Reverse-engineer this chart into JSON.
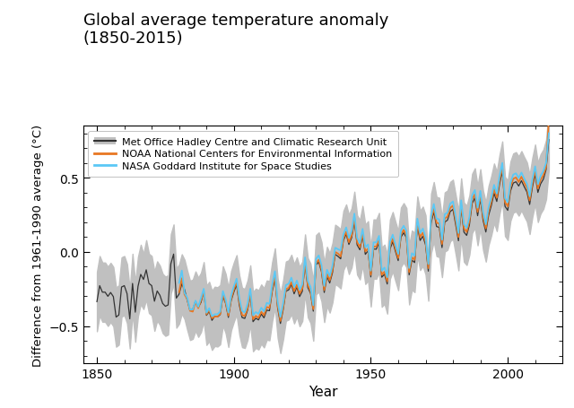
{
  "title": "Global average temperature anomaly\n(1850-2015)",
  "xlabel": "Year",
  "ylabel": "Difference from 1961-1990 average (°C)",
  "xlim": [
    1845,
    2020
  ],
  "ylim": [
    -0.75,
    0.85
  ],
  "hadcrut_color": "#333333",
  "hadcrut_uncertainty_color": "#c0c0c0",
  "noaa_color": "#e87722",
  "nasa_color": "#5bc8f5",
  "background": "#ffffff",
  "hadcrut_years": [
    1850,
    1851,
    1852,
    1853,
    1854,
    1855,
    1856,
    1857,
    1858,
    1859,
    1860,
    1861,
    1862,
    1863,
    1864,
    1865,
    1866,
    1867,
    1868,
    1869,
    1870,
    1871,
    1872,
    1873,
    1874,
    1875,
    1876,
    1877,
    1878,
    1879,
    1880,
    1881,
    1882,
    1883,
    1884,
    1885,
    1886,
    1887,
    1888,
    1889,
    1890,
    1891,
    1892,
    1893,
    1894,
    1895,
    1896,
    1897,
    1898,
    1899,
    1900,
    1901,
    1902,
    1903,
    1904,
    1905,
    1906,
    1907,
    1908,
    1909,
    1910,
    1911,
    1912,
    1913,
    1914,
    1915,
    1916,
    1917,
    1918,
    1919,
    1920,
    1921,
    1922,
    1923,
    1924,
    1925,
    1926,
    1927,
    1928,
    1929,
    1930,
    1931,
    1932,
    1933,
    1934,
    1935,
    1936,
    1937,
    1938,
    1939,
    1940,
    1941,
    1942,
    1943,
    1944,
    1945,
    1946,
    1947,
    1948,
    1949,
    1950,
    1951,
    1952,
    1953,
    1954,
    1955,
    1956,
    1957,
    1958,
    1959,
    1960,
    1961,
    1962,
    1963,
    1964,
    1965,
    1966,
    1967,
    1968,
    1969,
    1970,
    1971,
    1972,
    1973,
    1974,
    1975,
    1976,
    1977,
    1978,
    1979,
    1980,
    1981,
    1982,
    1983,
    1984,
    1985,
    1986,
    1987,
    1988,
    1989,
    1990,
    1991,
    1992,
    1993,
    1994,
    1995,
    1996,
    1997,
    1998,
    1999,
    2000,
    2001,
    2002,
    2003,
    2004,
    2005,
    2006,
    2007,
    2008,
    2009,
    2010,
    2011,
    2012,
    2013,
    2014,
    2015
  ],
  "hadcrut_vals": [
    -0.336,
    -0.228,
    -0.272,
    -0.272,
    -0.3,
    -0.274,
    -0.302,
    -0.44,
    -0.426,
    -0.237,
    -0.228,
    -0.282,
    -0.452,
    -0.213,
    -0.407,
    -0.233,
    -0.152,
    -0.186,
    -0.121,
    -0.213,
    -0.228,
    -0.333,
    -0.264,
    -0.293,
    -0.348,
    -0.367,
    -0.358,
    -0.08,
    -0.015,
    -0.312,
    -0.285,
    -0.216,
    -0.254,
    -0.328,
    -0.395,
    -0.387,
    -0.332,
    -0.374,
    -0.341,
    -0.269,
    -0.428,
    -0.402,
    -0.462,
    -0.435,
    -0.439,
    -0.424,
    -0.297,
    -0.348,
    -0.442,
    -0.329,
    -0.271,
    -0.222,
    -0.359,
    -0.443,
    -0.449,
    -0.393,
    -0.291,
    -0.471,
    -0.448,
    -0.459,
    -0.42,
    -0.445,
    -0.393,
    -0.397,
    -0.267,
    -0.176,
    -0.381,
    -0.483,
    -0.39,
    -0.265,
    -0.257,
    -0.22,
    -0.283,
    -0.237,
    -0.302,
    -0.266,
    -0.082,
    -0.241,
    -0.28,
    -0.4,
    -0.087,
    -0.069,
    -0.134,
    -0.274,
    -0.166,
    -0.21,
    -0.141,
    -0.017,
    -0.03,
    -0.047,
    0.077,
    0.12,
    0.05,
    0.095,
    0.206,
    0.047,
    0.014,
    0.11,
    -0.017,
    0.007,
    -0.169,
    0.019,
    0.018,
    0.063,
    -0.171,
    -0.151,
    -0.217,
    0.018,
    0.069,
    0.003,
    -0.059,
    0.099,
    0.129,
    0.096,
    -0.155,
    -0.056,
    -0.072,
    0.174,
    0.077,
    0.105,
    0.047,
    -0.13,
    0.192,
    0.271,
    0.171,
    0.165,
    0.029,
    0.201,
    0.214,
    0.272,
    0.287,
    0.183,
    0.075,
    0.296,
    0.133,
    0.111,
    0.181,
    0.327,
    0.364,
    0.244,
    0.358,
    0.212,
    0.134,
    0.245,
    0.312,
    0.396,
    0.34,
    0.455,
    0.545,
    0.307,
    0.28,
    0.41,
    0.464,
    0.473,
    0.444,
    0.48,
    0.44,
    0.404,
    0.32,
    0.436,
    0.524,
    0.401,
    0.459,
    0.49,
    0.555,
    0.757
  ],
  "hadcrut_lower": [
    -0.536,
    -0.428,
    -0.472,
    -0.472,
    -0.5,
    -0.474,
    -0.502,
    -0.64,
    -0.626,
    -0.437,
    -0.428,
    -0.482,
    -0.652,
    -0.413,
    -0.607,
    -0.433,
    -0.352,
    -0.386,
    -0.321,
    -0.413,
    -0.428,
    -0.533,
    -0.464,
    -0.493,
    -0.548,
    -0.567,
    -0.558,
    -0.28,
    -0.215,
    -0.512,
    -0.485,
    -0.416,
    -0.454,
    -0.528,
    -0.595,
    -0.587,
    -0.532,
    -0.574,
    -0.541,
    -0.469,
    -0.628,
    -0.602,
    -0.662,
    -0.635,
    -0.639,
    -0.624,
    -0.497,
    -0.548,
    -0.642,
    -0.529,
    -0.471,
    -0.422,
    -0.559,
    -0.643,
    -0.649,
    -0.593,
    -0.491,
    -0.671,
    -0.648,
    -0.659,
    -0.62,
    -0.645,
    -0.593,
    -0.597,
    -0.467,
    -0.376,
    -0.581,
    -0.683,
    -0.59,
    -0.465,
    -0.457,
    -0.42,
    -0.483,
    -0.437,
    -0.502,
    -0.466,
    -0.282,
    -0.441,
    -0.48,
    -0.6,
    -0.287,
    -0.269,
    -0.334,
    -0.474,
    -0.366,
    -0.41,
    -0.341,
    -0.217,
    -0.23,
    -0.247,
    -0.123,
    -0.08,
    -0.15,
    -0.105,
    0.006,
    -0.153,
    -0.186,
    -0.09,
    -0.217,
    -0.193,
    -0.369,
    -0.181,
    -0.182,
    -0.137,
    -0.371,
    -0.351,
    -0.417,
    -0.182,
    -0.131,
    -0.197,
    -0.259,
    -0.101,
    -0.071,
    -0.104,
    -0.355,
    -0.256,
    -0.272,
    -0.026,
    -0.123,
    -0.095,
    -0.153,
    -0.33,
    -0.008,
    0.071,
    -0.029,
    -0.035,
    -0.171,
    0.001,
    0.014,
    0.072,
    0.087,
    -0.017,
    -0.125,
    0.096,
    -0.067,
    -0.089,
    -0.019,
    0.127,
    0.164,
    0.044,
    0.158,
    0.012,
    -0.066,
    0.045,
    0.112,
    0.196,
    0.14,
    0.255,
    0.345,
    0.107,
    0.08,
    0.21,
    0.264,
    0.273,
    0.244,
    0.28,
    0.24,
    0.204,
    0.12,
    0.236,
    0.324,
    0.201,
    0.259,
    0.29,
    0.355,
    0.557
  ],
  "hadcrut_upper": [
    -0.136,
    -0.028,
    -0.072,
    -0.072,
    -0.1,
    -0.074,
    -0.102,
    -0.24,
    -0.226,
    -0.037,
    -0.028,
    -0.082,
    -0.252,
    -0.013,
    -0.207,
    -0.033,
    0.048,
    -0.014,
    0.079,
    -0.013,
    -0.028,
    -0.133,
    -0.064,
    -0.093,
    -0.148,
    -0.167,
    -0.158,
    0.12,
    0.185,
    -0.112,
    -0.085,
    -0.016,
    -0.054,
    -0.128,
    -0.195,
    -0.187,
    -0.132,
    -0.174,
    -0.141,
    -0.069,
    -0.228,
    -0.202,
    -0.262,
    -0.235,
    -0.239,
    -0.224,
    -0.097,
    -0.148,
    -0.242,
    -0.129,
    -0.071,
    -0.022,
    -0.159,
    -0.243,
    -0.249,
    -0.193,
    -0.091,
    -0.271,
    -0.248,
    -0.259,
    -0.22,
    -0.245,
    -0.193,
    -0.197,
    -0.067,
    0.024,
    -0.181,
    -0.283,
    -0.19,
    -0.065,
    -0.057,
    -0.02,
    -0.083,
    -0.037,
    -0.102,
    -0.066,
    0.118,
    -0.041,
    -0.08,
    -0.2,
    0.113,
    0.131,
    0.066,
    -0.074,
    0.034,
    -0.01,
    0.059,
    0.183,
    0.17,
    0.153,
    0.277,
    0.32,
    0.25,
    0.295,
    0.406,
    0.247,
    0.214,
    0.31,
    0.183,
    0.207,
    0.031,
    0.219,
    0.218,
    0.263,
    0.029,
    0.049,
    -0.017,
    0.218,
    0.269,
    0.203,
    0.141,
    0.299,
    0.329,
    0.296,
    0.045,
    0.144,
    0.128,
    0.374,
    0.277,
    0.305,
    0.247,
    -0.07,
    0.392,
    0.471,
    0.371,
    0.365,
    0.229,
    0.401,
    0.414,
    0.472,
    0.487,
    0.383,
    0.275,
    0.496,
    0.333,
    0.311,
    0.381,
    0.527,
    0.564,
    0.444,
    0.558,
    0.412,
    0.334,
    0.445,
    0.512,
    0.596,
    0.54,
    0.655,
    0.745,
    0.507,
    0.48,
    0.61,
    0.664,
    0.673,
    0.644,
    0.68,
    0.64,
    0.604,
    0.52,
    0.636,
    0.724,
    0.601,
    0.659,
    0.69,
    0.755,
    0.957
  ],
  "noaa_years": [
    1880,
    1881,
    1882,
    1883,
    1884,
    1885,
    1886,
    1887,
    1888,
    1889,
    1890,
    1891,
    1892,
    1893,
    1894,
    1895,
    1896,
    1897,
    1898,
    1899,
    1900,
    1901,
    1902,
    1903,
    1904,
    1905,
    1906,
    1907,
    1908,
    1909,
    1910,
    1911,
    1912,
    1913,
    1914,
    1915,
    1916,
    1917,
    1918,
    1919,
    1920,
    1921,
    1922,
    1923,
    1924,
    1925,
    1926,
    1927,
    1928,
    1929,
    1930,
    1931,
    1932,
    1933,
    1934,
    1935,
    1936,
    1937,
    1938,
    1939,
    1940,
    1941,
    1942,
    1943,
    1944,
    1945,
    1946,
    1947,
    1948,
    1949,
    1950,
    1951,
    1952,
    1953,
    1954,
    1955,
    1956,
    1957,
    1958,
    1959,
    1960,
    1961,
    1962,
    1963,
    1964,
    1965,
    1966,
    1967,
    1968,
    1969,
    1970,
    1971,
    1972,
    1973,
    1974,
    1975,
    1976,
    1977,
    1978,
    1979,
    1980,
    1981,
    1982,
    1983,
    1984,
    1985,
    1986,
    1987,
    1988,
    1989,
    1990,
    1991,
    1992,
    1993,
    1994,
    1995,
    1996,
    1997,
    1998,
    1999,
    2000,
    2001,
    2002,
    2003,
    2004,
    2005,
    2006,
    2007,
    2008,
    2009,
    2010,
    2011,
    2012,
    2013,
    2014,
    2015
  ],
  "noaa_vals": [
    -0.272,
    -0.178,
    -0.288,
    -0.319,
    -0.398,
    -0.403,
    -0.337,
    -0.38,
    -0.328,
    -0.266,
    -0.421,
    -0.392,
    -0.448,
    -0.437,
    -0.437,
    -0.42,
    -0.284,
    -0.34,
    -0.43,
    -0.318,
    -0.254,
    -0.204,
    -0.338,
    -0.426,
    -0.433,
    -0.38,
    -0.278,
    -0.455,
    -0.432,
    -0.445,
    -0.404,
    -0.428,
    -0.372,
    -0.378,
    -0.248,
    -0.159,
    -0.365,
    -0.466,
    -0.375,
    -0.252,
    -0.243,
    -0.204,
    -0.265,
    -0.222,
    -0.283,
    -0.247,
    -0.068,
    -0.224,
    -0.265,
    -0.387,
    -0.075,
    -0.053,
    -0.119,
    -0.258,
    -0.149,
    -0.193,
    -0.122,
    -0.001,
    -0.011,
    -0.031,
    0.091,
    0.136,
    0.065,
    0.112,
    0.229,
    0.066,
    0.031,
    0.127,
    0.003,
    0.022,
    -0.155,
    0.036,
    0.036,
    0.08,
    -0.155,
    -0.134,
    -0.199,
    0.04,
    0.088,
    0.021,
    -0.042,
    0.117,
    0.148,
    0.113,
    -0.137,
    -0.037,
    -0.053,
    0.196,
    0.099,
    0.129,
    0.068,
    -0.11,
    0.215,
    0.295,
    0.196,
    0.191,
    0.053,
    0.225,
    0.237,
    0.297,
    0.312,
    0.211,
    0.099,
    0.32,
    0.159,
    0.134,
    0.206,
    0.355,
    0.389,
    0.27,
    0.383,
    0.238,
    0.158,
    0.272,
    0.339,
    0.424,
    0.365,
    0.483,
    0.572,
    0.335,
    0.307,
    0.438,
    0.493,
    0.502,
    0.471,
    0.507,
    0.467,
    0.432,
    0.347,
    0.463,
    0.549,
    0.428,
    0.486,
    0.517,
    0.572,
    0.9
  ],
  "nasa_years": [
    1880,
    1881,
    1882,
    1883,
    1884,
    1885,
    1886,
    1887,
    1888,
    1889,
    1890,
    1891,
    1892,
    1893,
    1894,
    1895,
    1896,
    1897,
    1898,
    1899,
    1900,
    1901,
    1902,
    1903,
    1904,
    1905,
    1906,
    1907,
    1908,
    1909,
    1910,
    1911,
    1912,
    1913,
    1914,
    1915,
    1916,
    1917,
    1918,
    1919,
    1920,
    1921,
    1922,
    1923,
    1924,
    1925,
    1926,
    1927,
    1928,
    1929,
    1930,
    1931,
    1932,
    1933,
    1934,
    1935,
    1936,
    1937,
    1938,
    1939,
    1940,
    1941,
    1942,
    1943,
    1944,
    1945,
    1946,
    1947,
    1948,
    1949,
    1950,
    1951,
    1952,
    1953,
    1954,
    1955,
    1956,
    1957,
    1958,
    1959,
    1960,
    1961,
    1962,
    1963,
    1964,
    1965,
    1966,
    1967,
    1968,
    1969,
    1970,
    1971,
    1972,
    1973,
    1974,
    1975,
    1976,
    1977,
    1978,
    1979,
    1980,
    1981,
    1982,
    1983,
    1984,
    1985,
    1986,
    1987,
    1988,
    1989,
    1990,
    1991,
    1992,
    1993,
    1994,
    1995,
    1996,
    1997,
    1998,
    1999,
    2000,
    2001,
    2002,
    2003,
    2004,
    2005,
    2006,
    2007,
    2008,
    2009,
    2010,
    2011,
    2012,
    2013,
    2014,
    2015
  ],
  "nasa_vals": [
    -0.209,
    -0.126,
    -0.277,
    -0.31,
    -0.39,
    -0.388,
    -0.329,
    -0.37,
    -0.311,
    -0.249,
    -0.411,
    -0.38,
    -0.434,
    -0.421,
    -0.421,
    -0.403,
    -0.265,
    -0.321,
    -0.41,
    -0.295,
    -0.232,
    -0.181,
    -0.313,
    -0.399,
    -0.408,
    -0.352,
    -0.249,
    -0.428,
    -0.406,
    -0.418,
    -0.377,
    -0.401,
    -0.344,
    -0.351,
    -0.22,
    -0.131,
    -0.337,
    -0.439,
    -0.347,
    -0.224,
    -0.215,
    -0.174,
    -0.237,
    -0.194,
    -0.255,
    -0.218,
    -0.037,
    -0.195,
    -0.236,
    -0.36,
    -0.047,
    -0.024,
    -0.09,
    -0.23,
    -0.121,
    -0.164,
    -0.093,
    0.028,
    0.018,
    0.009,
    0.119,
    0.165,
    0.095,
    0.141,
    0.258,
    0.095,
    0.059,
    0.155,
    0.031,
    0.05,
    -0.127,
    0.064,
    0.064,
    0.108,
    -0.127,
    -0.106,
    -0.171,
    0.068,
    0.116,
    0.049,
    -0.014,
    0.145,
    0.176,
    0.141,
    -0.109,
    -0.009,
    -0.025,
    0.224,
    0.127,
    0.157,
    0.096,
    -0.082,
    0.243,
    0.323,
    0.224,
    0.219,
    0.081,
    0.253,
    0.265,
    0.325,
    0.34,
    0.239,
    0.127,
    0.348,
    0.187,
    0.162,
    0.234,
    0.383,
    0.417,
    0.298,
    0.411,
    0.266,
    0.186,
    0.3,
    0.367,
    0.452,
    0.393,
    0.511,
    0.6,
    0.363,
    0.335,
    0.466,
    0.521,
    0.53,
    0.499,
    0.535,
    0.495,
    0.46,
    0.375,
    0.491,
    0.577,
    0.456,
    0.514,
    0.545,
    0.6,
    0.8
  ],
  "legend_labels": [
    "Met Office Hadley Centre and Climatic Research Unit",
    "NOAA National Centers for Environmental Information",
    "NASA Goddard Institute for Space Studies"
  ]
}
